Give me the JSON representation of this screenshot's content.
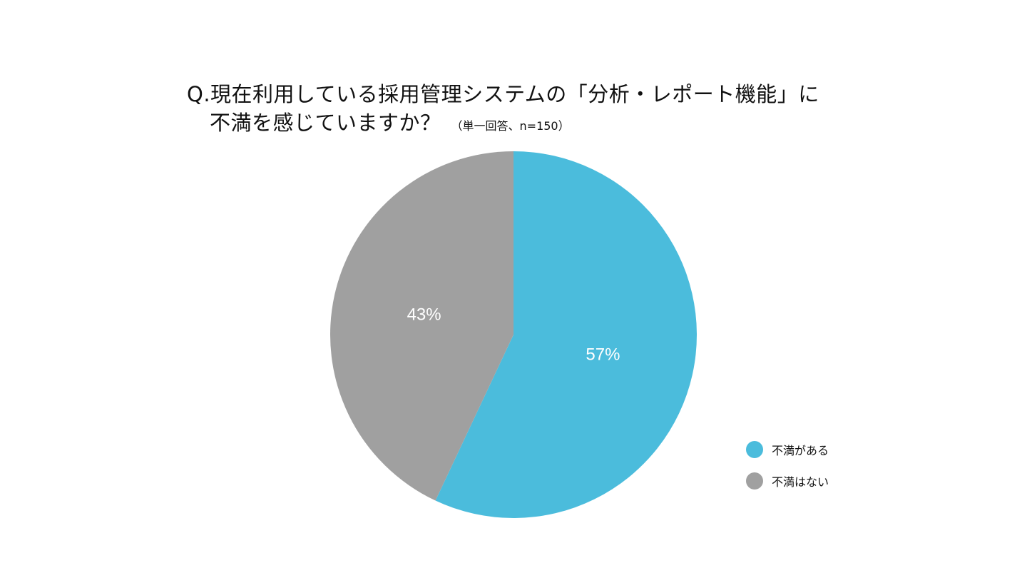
{
  "chart_data": {
    "type": "pie",
    "title_line1": "Q.現在利用している採用管理システムの「分析・レポート機能」に",
    "title_line2": "不満を感じていますか？",
    "title_note": "（単一回答、n=150）",
    "slices": [
      {
        "name": "不満がある",
        "value": 57,
        "label": "57%",
        "color": "#4BBCDC"
      },
      {
        "name": "不満はない",
        "value": 43,
        "label": "43%",
        "color": "#A0A0A0"
      }
    ],
    "legend_position": "bottom-right",
    "label_color": "#FFFFFF"
  }
}
